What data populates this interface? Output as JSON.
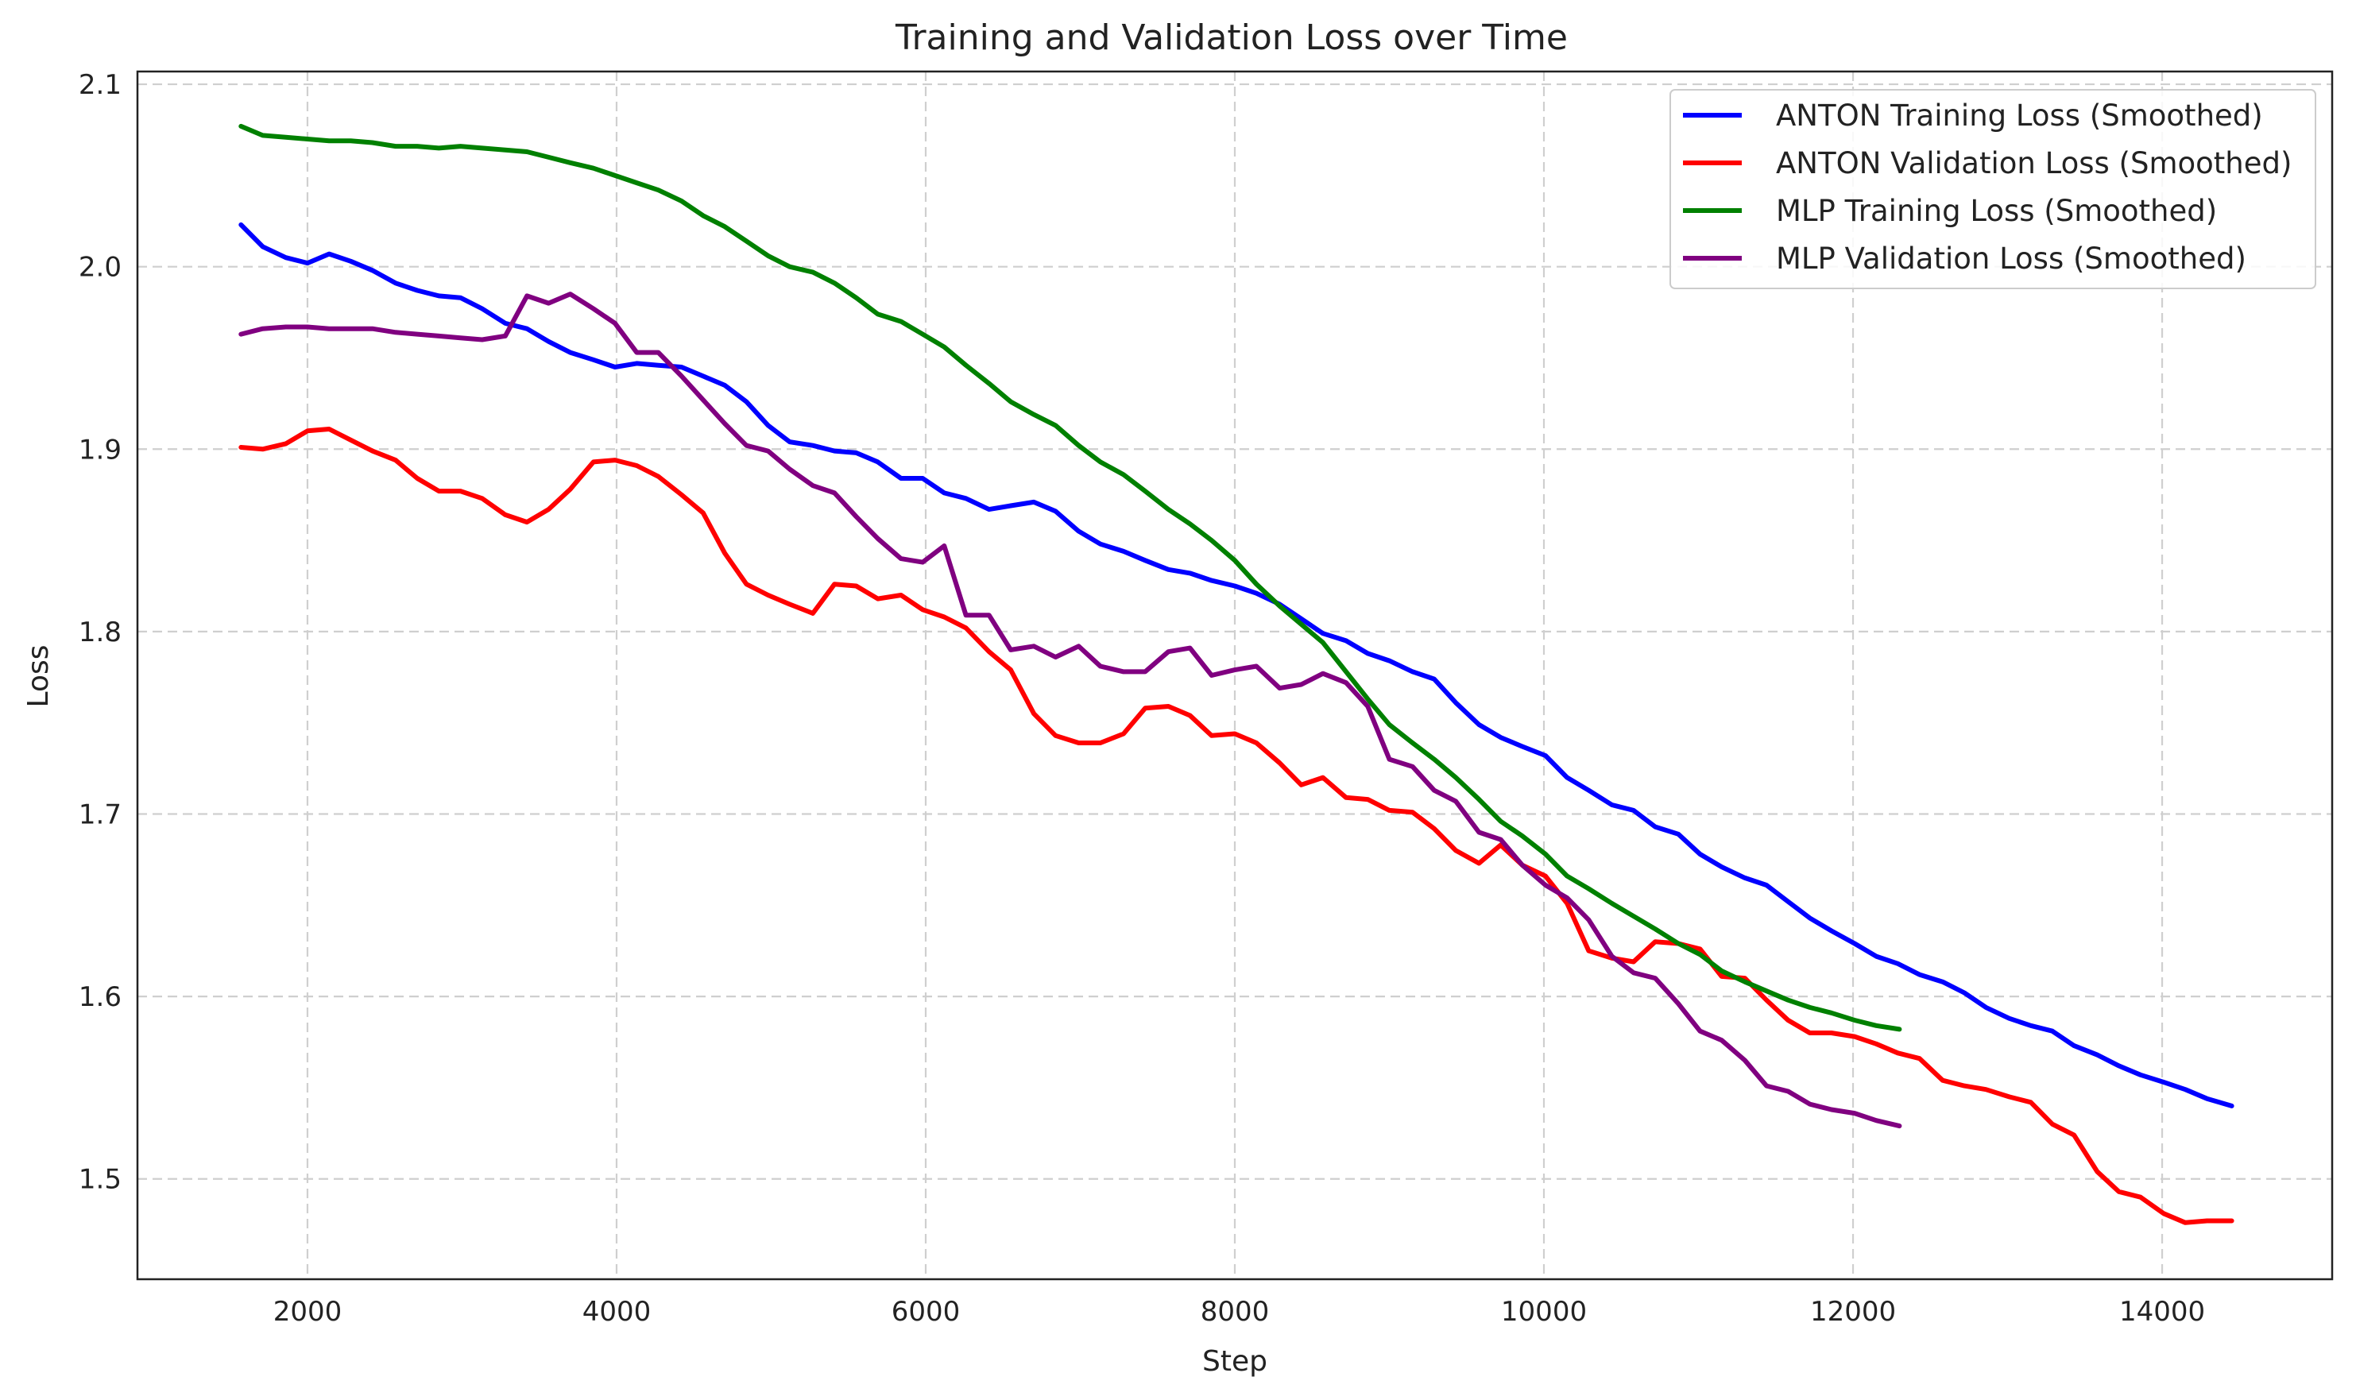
{
  "chart_data": {
    "type": "line",
    "title": "Training and Validation Loss over Time",
    "xlabel": "Step",
    "ylabel": "Loss",
    "xlim": [
      900,
      15100
    ],
    "ylim": [
      1.445,
      2.107
    ],
    "xticks": [
      "2000",
      "4000",
      "6000",
      "8000",
      "10000",
      "12000",
      "14000"
    ],
    "yticks": [
      "1.5",
      "1.6",
      "1.7",
      "1.8",
      "1.9",
      "2.0",
      "2.1"
    ],
    "grid": true,
    "legend_position": "top-right",
    "series": [
      {
        "name": "ANTON Training Loss (Smoothed)",
        "color": "#0000ff",
        "x": [
          1570,
          1710,
          1860,
          2000,
          2140,
          2280,
          2420,
          2570,
          2710,
          2850,
          2990,
          3130,
          3280,
          3420,
          3560,
          3700,
          3850,
          3990,
          4130,
          4270,
          4420,
          4560,
          4700,
          4840,
          4980,
          5120,
          5270,
          5410,
          5550,
          5690,
          5840,
          5980,
          6120,
          6260,
          6410,
          6550,
          6700,
          6840,
          6990,
          7130,
          7280,
          7420,
          7570,
          7710,
          7850,
          8000,
          8140,
          8290,
          8430,
          8570,
          8720,
          8860,
          9000,
          9150,
          9290,
          9430,
          9580,
          9720,
          9860,
          10010,
          10150,
          10290,
          10440,
          10580,
          10720,
          10870,
          11010,
          11150,
          11300,
          11440,
          11580,
          11720,
          11860,
          12010,
          12150,
          12290,
          12430,
          12580,
          12720,
          12860,
          13010,
          13150,
          13290,
          13430,
          13580,
          13720,
          13860,
          14010,
          14150,
          14290,
          14450
        ],
        "y": [
          2.023,
          2.011,
          2.005,
          2.002,
          2.007,
          2.003,
          1.998,
          1.991,
          1.987,
          1.984,
          1.983,
          1.977,
          1.969,
          1.966,
          1.959,
          1.953,
          1.949,
          1.945,
          1.947,
          1.946,
          1.945,
          1.94,
          1.935,
          1.926,
          1.913,
          1.904,
          1.902,
          1.899,
          1.898,
          1.893,
          1.884,
          1.884,
          1.876,
          1.873,
          1.867,
          1.869,
          1.871,
          1.866,
          1.855,
          1.848,
          1.844,
          1.839,
          1.834,
          1.832,
          1.828,
          1.825,
          1.821,
          1.815,
          1.807,
          1.799,
          1.795,
          1.788,
          1.784,
          1.778,
          1.774,
          1.761,
          1.749,
          1.742,
          1.737,
          1.732,
          1.72,
          1.713,
          1.705,
          1.702,
          1.693,
          1.689,
          1.678,
          1.671,
          1.665,
          1.661,
          1.652,
          1.643,
          1.636,
          1.629,
          1.622,
          1.618,
          1.612,
          1.608,
          1.602,
          1.594,
          1.588,
          1.584,
          1.581,
          1.573,
          1.568,
          1.562,
          1.557,
          1.553,
          1.549,
          1.544,
          1.54
        ]
      },
      {
        "name": "ANTON Validation Loss (Smoothed)",
        "color": "#ff0000",
        "x": [
          1570,
          1710,
          1860,
          2000,
          2140,
          2280,
          2420,
          2570,
          2710,
          2850,
          2990,
          3130,
          3280,
          3420,
          3560,
          3700,
          3850,
          3990,
          4130,
          4270,
          4420,
          4560,
          4700,
          4840,
          4980,
          5120,
          5270,
          5410,
          5550,
          5690,
          5840,
          5980,
          6120,
          6260,
          6410,
          6550,
          6700,
          6840,
          6990,
          7130,
          7280,
          7420,
          7570,
          7710,
          7850,
          8000,
          8140,
          8290,
          8430,
          8570,
          8720,
          8860,
          9000,
          9150,
          9290,
          9430,
          9580,
          9720,
          9860,
          10010,
          10150,
          10290,
          10440,
          10580,
          10720,
          10870,
          11010,
          11150,
          11300,
          11440,
          11580,
          11720,
          11860,
          12010,
          12150,
          12290,
          12430,
          12580,
          12720,
          12860,
          13010,
          13150,
          13290,
          13430,
          13580,
          13720,
          13860,
          14010,
          14150,
          14290,
          14450
        ],
        "y": [
          1.901,
          1.9,
          1.903,
          1.91,
          1.911,
          1.905,
          1.899,
          1.894,
          1.884,
          1.877,
          1.877,
          1.873,
          1.864,
          1.86,
          1.867,
          1.878,
          1.893,
          1.894,
          1.891,
          1.885,
          1.875,
          1.865,
          1.843,
          1.826,
          1.82,
          1.815,
          1.81,
          1.826,
          1.825,
          1.818,
          1.82,
          1.812,
          1.808,
          1.802,
          1.789,
          1.779,
          1.755,
          1.743,
          1.739,
          1.739,
          1.744,
          1.758,
          1.759,
          1.754,
          1.743,
          1.744,
          1.739,
          1.728,
          1.716,
          1.72,
          1.709,
          1.708,
          1.702,
          1.701,
          1.692,
          1.68,
          1.673,
          1.683,
          1.672,
          1.666,
          1.651,
          1.625,
          1.621,
          1.619,
          1.63,
          1.629,
          1.626,
          1.611,
          1.61,
          1.598,
          1.587,
          1.58,
          1.58,
          1.578,
          1.574,
          1.569,
          1.566,
          1.554,
          1.551,
          1.549,
          1.545,
          1.542,
          1.53,
          1.524,
          1.504,
          1.493,
          1.49,
          1.481,
          1.476,
          1.477,
          1.477
        ]
      },
      {
        "name": "MLP Training Loss (Smoothed)",
        "color": "#008000",
        "x": [
          1570,
          1710,
          1860,
          2000,
          2140,
          2280,
          2420,
          2570,
          2710,
          2850,
          2990,
          3130,
          3280,
          3420,
          3560,
          3700,
          3850,
          3990,
          4130,
          4270,
          4420,
          4560,
          4700,
          4840,
          4980,
          5120,
          5270,
          5410,
          5550,
          5690,
          5840,
          5980,
          6120,
          6260,
          6410,
          6550,
          6700,
          6840,
          6990,
          7130,
          7280,
          7420,
          7570,
          7710,
          7850,
          8000,
          8140,
          8290,
          8430,
          8570,
          8720,
          8860,
          9000,
          9150,
          9290,
          9430,
          9580,
          9720,
          9860,
          10010,
          10150,
          10290,
          10440,
          10580,
          10720,
          10870,
          11010,
          11150,
          11300,
          11440,
          11580,
          11720,
          11860,
          12010,
          12150,
          12300
        ],
        "y": [
          2.077,
          2.072,
          2.071,
          2.07,
          2.069,
          2.069,
          2.068,
          2.066,
          2.066,
          2.065,
          2.066,
          2.065,
          2.064,
          2.063,
          2.06,
          2.057,
          2.054,
          2.05,
          2.046,
          2.042,
          2.036,
          2.028,
          2.022,
          2.014,
          2.006,
          2.0,
          1.997,
          1.991,
          1.983,
          1.974,
          1.97,
          1.963,
          1.956,
          1.946,
          1.936,
          1.926,
          1.919,
          1.913,
          1.902,
          1.893,
          1.886,
          1.877,
          1.867,
          1.859,
          1.85,
          1.839,
          1.826,
          1.814,
          1.804,
          1.794,
          1.778,
          1.763,
          1.749,
          1.739,
          1.73,
          1.72,
          1.708,
          1.696,
          1.688,
          1.678,
          1.666,
          1.659,
          1.651,
          1.644,
          1.637,
          1.629,
          1.623,
          1.614,
          1.608,
          1.603,
          1.598,
          1.594,
          1.591,
          1.587,
          1.584,
          1.582
        ]
      },
      {
        "name": "MLP Validation Loss (Smoothed)",
        "color": "#800080",
        "x": [
          1570,
          1710,
          1860,
          2000,
          2140,
          2280,
          2420,
          2570,
          2710,
          2850,
          2990,
          3130,
          3280,
          3420,
          3560,
          3700,
          3850,
          3990,
          4130,
          4270,
          4420,
          4560,
          4700,
          4840,
          4980,
          5120,
          5270,
          5410,
          5550,
          5690,
          5840,
          5980,
          6120,
          6260,
          6410,
          6550,
          6700,
          6840,
          6990,
          7130,
          7280,
          7420,
          7570,
          7710,
          7850,
          8000,
          8140,
          8290,
          8430,
          8570,
          8720,
          8860,
          9000,
          9150,
          9290,
          9430,
          9580,
          9720,
          9860,
          10010,
          10150,
          10290,
          10440,
          10580,
          10720,
          10870,
          11010,
          11150,
          11300,
          11440,
          11580,
          11720,
          11860,
          12010,
          12150,
          12300
        ],
        "y": [
          1.963,
          1.966,
          1.967,
          1.967,
          1.966,
          1.966,
          1.966,
          1.964,
          1.963,
          1.962,
          1.961,
          1.96,
          1.962,
          1.984,
          1.98,
          1.985,
          1.977,
          1.969,
          1.953,
          1.953,
          1.94,
          1.927,
          1.914,
          1.902,
          1.899,
          1.889,
          1.88,
          1.876,
          1.863,
          1.851,
          1.84,
          1.838,
          1.847,
          1.809,
          1.809,
          1.79,
          1.792,
          1.786,
          1.792,
          1.781,
          1.778,
          1.778,
          1.789,
          1.791,
          1.776,
          1.779,
          1.781,
          1.769,
          1.771,
          1.777,
          1.772,
          1.759,
          1.73,
          1.726,
          1.713,
          1.707,
          1.69,
          1.686,
          1.672,
          1.661,
          1.654,
          1.642,
          1.622,
          1.613,
          1.61,
          1.596,
          1.581,
          1.576,
          1.565,
          1.551,
          1.548,
          1.541,
          1.538,
          1.536,
          1.532,
          1.529
        ]
      }
    ]
  }
}
